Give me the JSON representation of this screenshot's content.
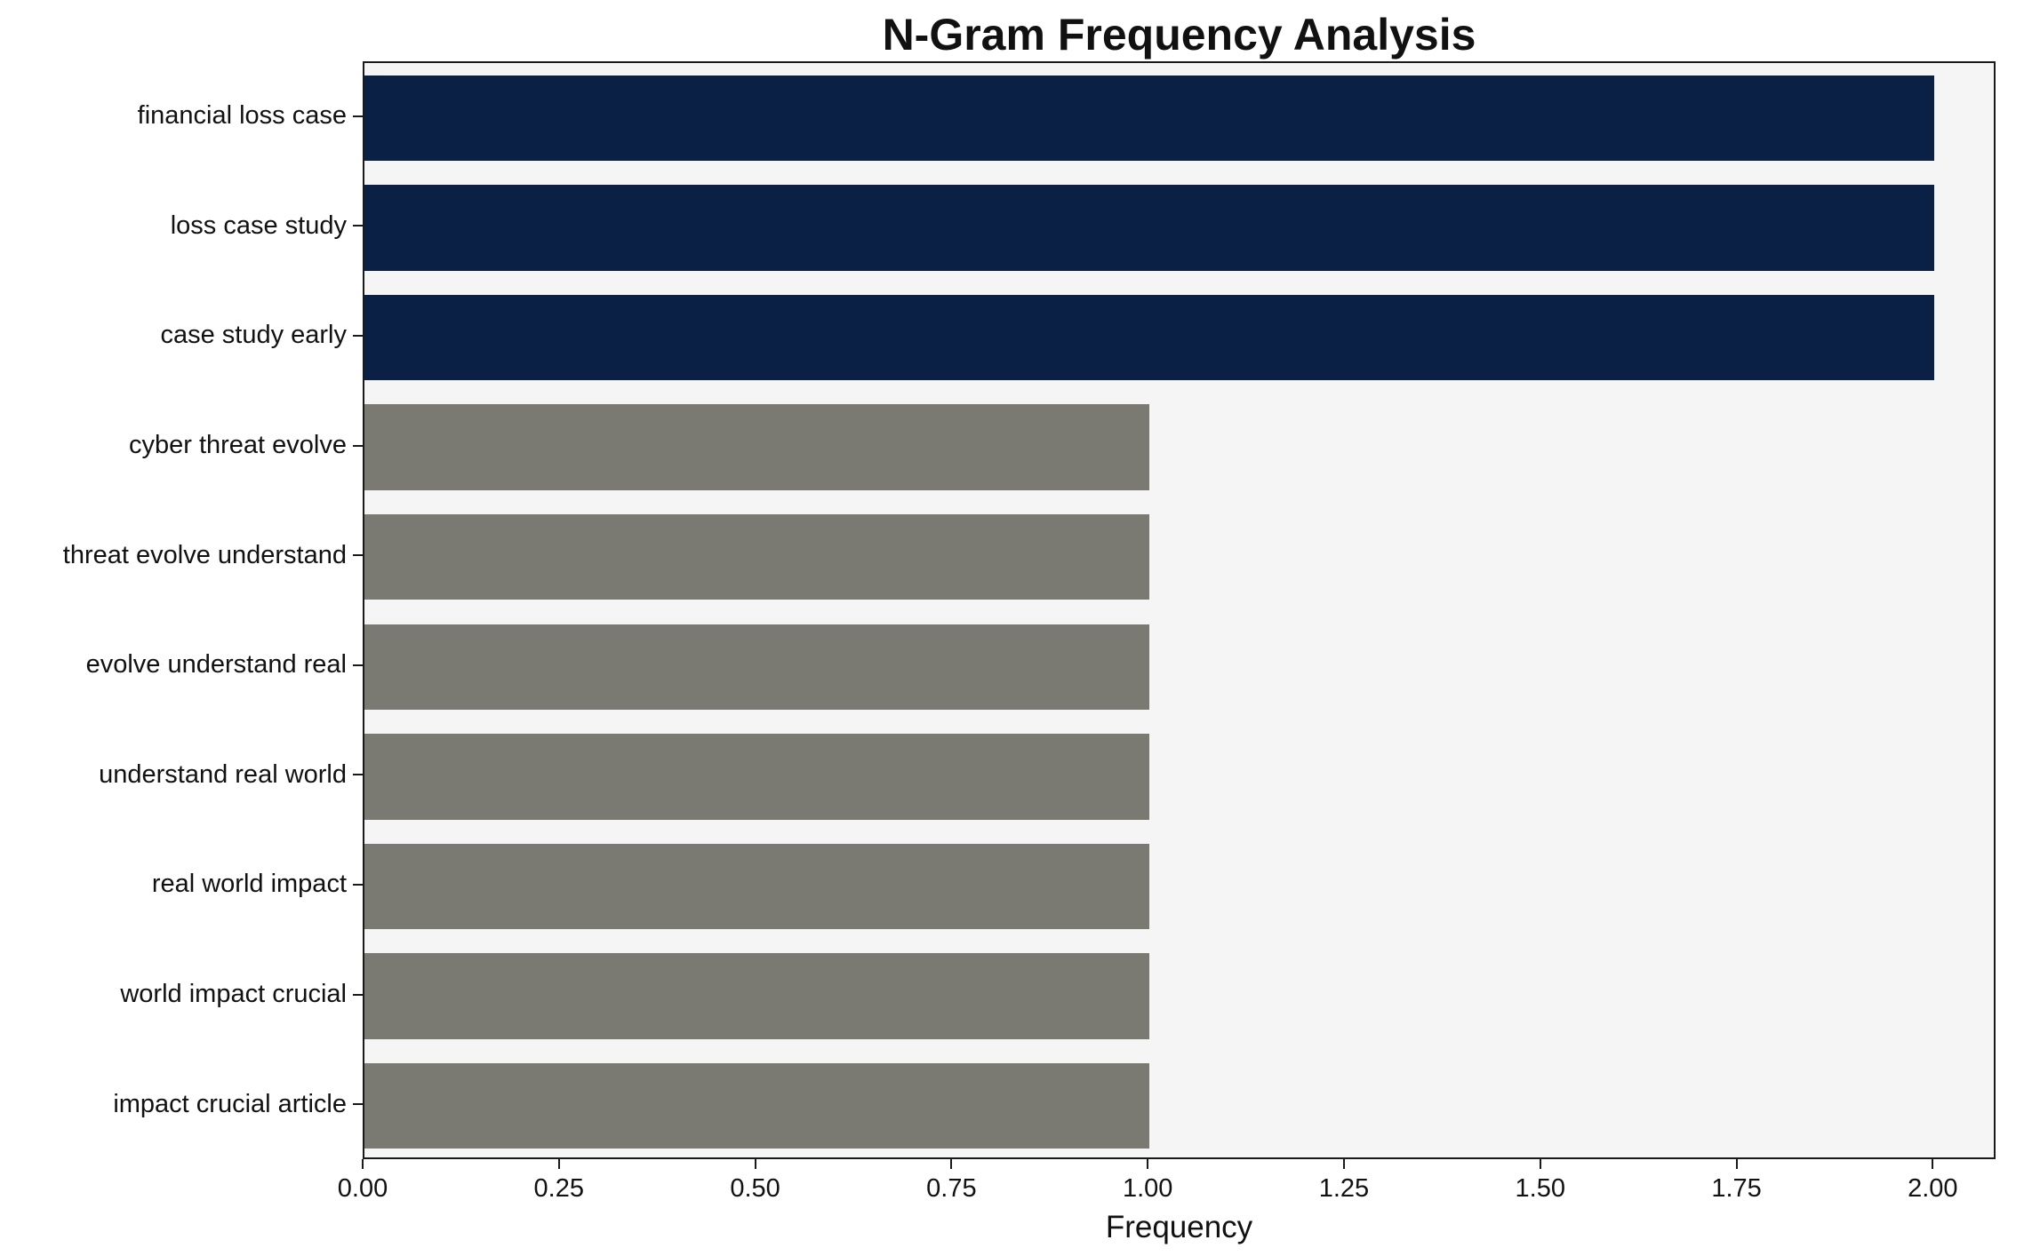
{
  "chart_data": {
    "type": "bar",
    "orientation": "horizontal",
    "title": "N-Gram Frequency Analysis",
    "xlabel": "Frequency",
    "ylabel": "",
    "categories": [
      "financial loss case",
      "loss case study",
      "case study early",
      "cyber threat evolve",
      "threat evolve understand",
      "evolve understand real",
      "understand real world",
      "real world impact",
      "world impact crucial",
      "impact crucial article"
    ],
    "values": [
      2,
      2,
      2,
      1,
      1,
      1,
      1,
      1,
      1,
      1
    ],
    "bar_colors": [
      "#0a2044",
      "#0a2044",
      "#0a2044",
      "#7b7a72",
      "#7b7a72",
      "#7b7a72",
      "#7b7a72",
      "#7b7a72",
      "#7b7a72",
      "#7b7a72"
    ],
    "highlight_color": "#0a2044",
    "default_color": "#7b7a72",
    "xlim": [
      0,
      2.08
    ],
    "xticks": [
      0,
      0.25,
      0.5,
      0.75,
      1.0,
      1.25,
      1.5,
      1.75,
      2.0
    ],
    "xtick_labels": [
      "0.00",
      "0.25",
      "0.50",
      "0.75",
      "1.00",
      "1.25",
      "1.50",
      "1.75",
      "2.00"
    ],
    "plot_background": "#f5f5f5",
    "grid": false,
    "legend": "none"
  }
}
